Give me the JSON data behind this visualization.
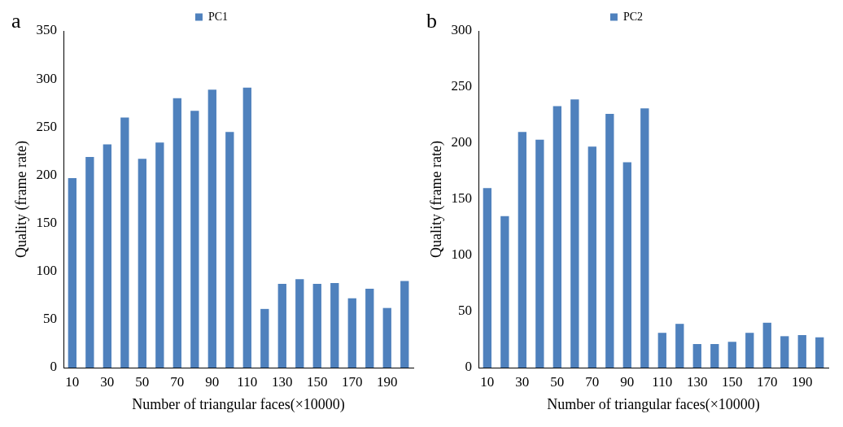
{
  "chart_data": [
    {
      "type": "bar",
      "xlabel": "Number of triangular faces(×10000)",
      "ylabel": "Quality (frame rate)",
      "annotations": [
        "a"
      ],
      "categories": [
        "10",
        null,
        "30",
        null,
        "50",
        null,
        "70",
        null,
        "90",
        null,
        "110",
        null,
        "130",
        null,
        "150",
        null,
        "170",
        null,
        "190",
        null
      ],
      "series": [
        {
          "name": "PC1",
          "color": "#4f81bd",
          "values": [
            197,
            219,
            232,
            260,
            217,
            234,
            280,
            267,
            289,
            245,
            291,
            61,
            87,
            92,
            87,
            88,
            72,
            82,
            62,
            90
          ]
        }
      ],
      "ylim": [
        0,
        350
      ],
      "yticks": [
        0,
        50,
        100,
        150,
        200,
        250,
        300,
        350
      ],
      "grid": false,
      "legend": "top"
    },
    {
      "type": "bar",
      "xlabel": "Number of triangular faces(×10000)",
      "ylabel": "Quality (frame rate)",
      "annotations": [
        "b"
      ],
      "categories": [
        "10",
        null,
        "30",
        null,
        "50",
        null,
        "70",
        null,
        "90",
        null,
        "110",
        null,
        "130",
        null,
        "150",
        null,
        "170",
        null,
        "190",
        null
      ],
      "series": [
        {
          "name": "PC2",
          "color": "#4f81bd",
          "values": [
            160,
            135,
            210,
            203,
            233,
            239,
            197,
            226,
            183,
            231,
            31,
            39,
            21,
            21,
            23,
            31,
            40,
            28,
            29,
            27
          ]
        }
      ],
      "ylim": [
        0,
        300
      ],
      "yticks": [
        0,
        50,
        100,
        150,
        200,
        250,
        300
      ],
      "grid": false,
      "legend": "top"
    }
  ]
}
